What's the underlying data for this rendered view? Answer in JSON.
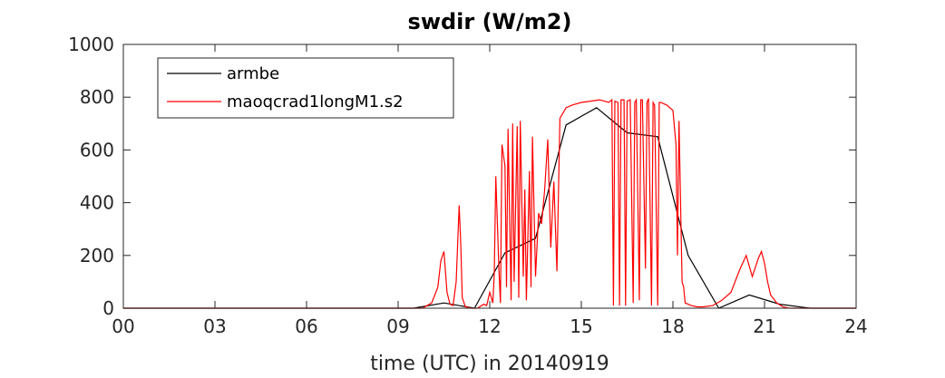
{
  "chart_data": {
    "type": "line",
    "title": "swdir  (W/m2)",
    "xlabel": "time (UTC) in 20140919",
    "ylabel": "",
    "xlim": [
      0,
      24
    ],
    "ylim": [
      0,
      1000
    ],
    "xticks": [
      0,
      3,
      6,
      9,
      12,
      15,
      18,
      21,
      24
    ],
    "xtick_labels": [
      "00",
      "03",
      "06",
      "09",
      "12",
      "15",
      "18",
      "21",
      "24"
    ],
    "yticks": [
      0,
      200,
      400,
      600,
      800,
      1000
    ],
    "ytick_labels": [
      "0",
      "200",
      "400",
      "600",
      "800",
      "1000"
    ],
    "grid": false,
    "legend_position": "top-left",
    "series": [
      {
        "name": "armbe",
        "color": "#000000",
        "x": [
          0,
          1,
          2,
          3,
          4,
          5,
          6,
          7,
          8,
          9,
          9.5,
          10.5,
          11.5,
          12.5,
          13.5,
          14.5,
          15.5,
          16.5,
          17.5,
          18.5,
          19.5,
          20.5,
          21.5,
          22.5,
          23.5,
          24
        ],
        "y": [
          0,
          0,
          0,
          0,
          0,
          0,
          0,
          0,
          0,
          0,
          0,
          20,
          0,
          210,
          265,
          695,
          760,
          665,
          650,
          200,
          0,
          50,
          15,
          0,
          0,
          0
        ]
      },
      {
        "name": "maoqcrad1longM1.s2",
        "color": "#ff0000",
        "x": [
          0,
          9.8,
          10.1,
          10.3,
          10.4,
          10.5,
          10.6,
          10.7,
          10.8,
          10.9,
          11.0,
          11.05,
          11.1,
          11.2,
          11.4,
          11.6,
          11.8,
          11.9,
          12.0,
          12.1,
          12.15,
          12.2,
          12.3,
          12.35,
          12.4,
          12.5,
          12.55,
          12.6,
          12.7,
          12.75,
          12.8,
          12.9,
          12.95,
          13.0,
          13.1,
          13.15,
          13.2,
          13.3,
          13.35,
          13.4,
          13.5,
          13.6,
          13.7,
          13.8,
          13.9,
          14.0,
          14.1,
          14.2,
          14.3,
          14.4,
          14.5,
          14.7,
          15.0,
          15.3,
          15.6,
          15.9,
          16.0,
          16.05,
          16.1,
          16.2,
          16.25,
          16.3,
          16.4,
          16.45,
          16.5,
          16.6,
          16.7,
          16.75,
          16.8,
          16.9,
          16.95,
          17.0,
          17.1,
          17.15,
          17.2,
          17.3,
          17.35,
          17.4,
          17.5,
          17.55,
          17.6,
          17.8,
          18.0,
          18.1,
          18.15,
          18.2,
          18.3,
          18.35,
          18.4,
          18.6,
          18.8,
          19.0,
          19.3,
          19.6,
          19.9,
          20.2,
          20.4,
          20.6,
          20.8,
          20.9,
          21.0,
          21.1,
          21.2,
          21.4,
          21.6,
          21.8,
          22.0,
          24
        ],
        "y": [
          0,
          0,
          20,
          80,
          180,
          215,
          60,
          15,
          10,
          100,
          390,
          250,
          40,
          5,
          0,
          0,
          15,
          10,
          60,
          20,
          130,
          500,
          150,
          20,
          620,
          540,
          80,
          680,
          30,
          700,
          100,
          690,
          40,
          710,
          120,
          450,
          30,
          520,
          80,
          650,
          120,
          360,
          320,
          450,
          640,
          230,
          480,
          140,
          720,
          740,
          760,
          770,
          780,
          785,
          790,
          780,
          790,
          10,
          785,
          780,
          10,
          790,
          790,
          10,
          785,
          790,
          20,
          780,
          790,
          30,
          790,
          790,
          150,
          780,
          795,
          10,
          780,
          770,
          10,
          780,
          780,
          770,
          750,
          620,
          200,
          710,
          100,
          80,
          20,
          10,
          5,
          5,
          10,
          30,
          60,
          150,
          200,
          120,
          190,
          215,
          170,
          100,
          50,
          20,
          5,
          0,
          0,
          0
        ]
      }
    ]
  }
}
